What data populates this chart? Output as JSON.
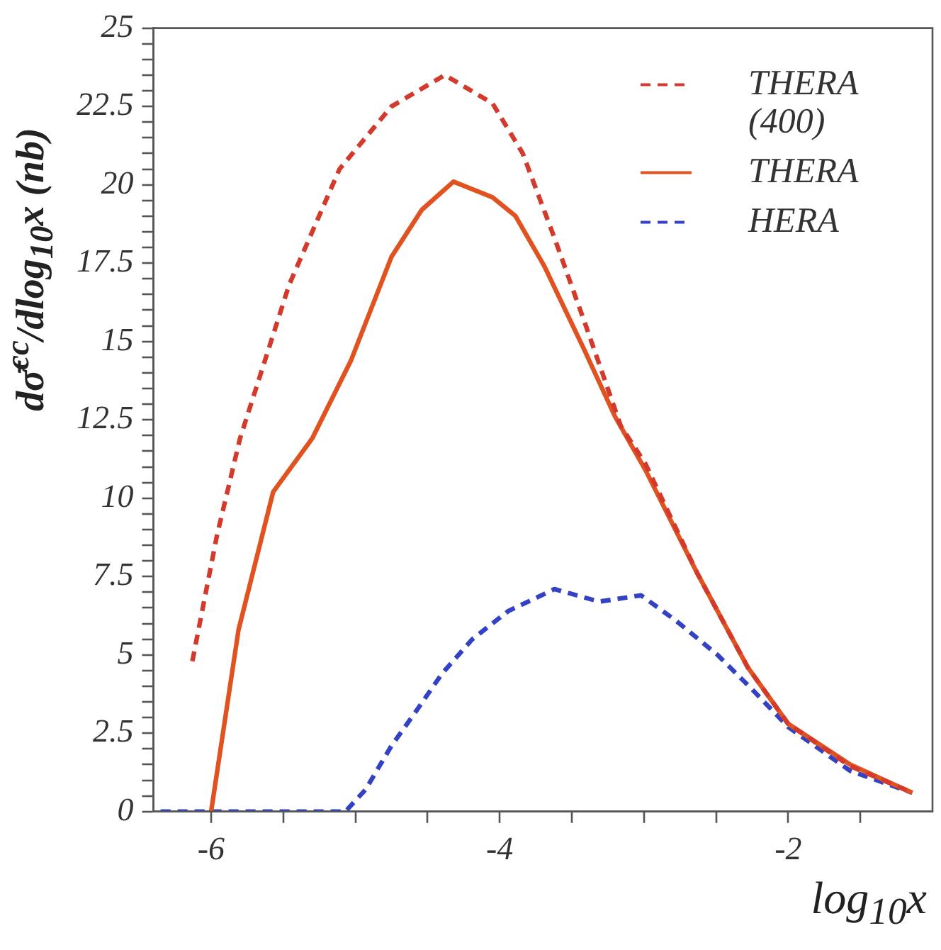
{
  "chart_data": {
    "type": "line",
    "xlabel": "log$_{10}$x",
    "ylabel": "dσ̄$^{cc}$/dlog$_{10}$x (nb)",
    "xlim": [
      -6.4,
      -1.0
    ],
    "ylim": [
      0,
      25
    ],
    "xticks": [
      -6,
      {
        "value": -5.5,
        "label": null
      },
      {
        "value": -5,
        "label": null
      },
      {
        "value": -4.5,
        "label": null
      },
      -4,
      {
        "value": -3.5,
        "label": null
      },
      {
        "value": -3,
        "label": null
      },
      {
        "value": -2.5,
        "label": null
      },
      -2,
      {
        "value": -1.5,
        "label": null
      }
    ],
    "yticks": [
      0,
      {
        "value": 0.5,
        "label": null
      },
      {
        "value": 1,
        "label": null
      },
      {
        "value": 1.5,
        "label": null
      },
      {
        "value": 2,
        "label": null
      },
      2.5,
      {
        "value": 3,
        "label": null
      },
      {
        "value": 3.5,
        "label": null
      },
      {
        "value": 4,
        "label": null
      },
      {
        "value": 4.5,
        "label": null
      },
      5,
      {
        "value": 5.5,
        "label": null
      },
      {
        "value": 6,
        "label": null
      },
      {
        "value": 6.5,
        "label": null
      },
      {
        "value": 7,
        "label": null
      },
      7.5,
      {
        "value": 8,
        "label": null
      },
      {
        "value": 8.5,
        "label": null
      },
      {
        "value": 9,
        "label": null
      },
      {
        "value": 9.5,
        "label": null
      },
      10,
      {
        "value": 10.5,
        "label": null
      },
      {
        "value": 11,
        "label": null
      },
      {
        "value": 11.5,
        "label": null
      },
      {
        "value": 12,
        "label": null
      },
      12.5,
      {
        "value": 13,
        "label": null
      },
      {
        "value": 13.5,
        "label": null
      },
      {
        "value": 14,
        "label": null
      },
      {
        "value": 14.5,
        "label": null
      },
      15,
      {
        "value": 15.5,
        "label": null
      },
      {
        "value": 16,
        "label": null
      },
      {
        "value": 16.5,
        "label": null
      },
      {
        "value": 17,
        "label": null
      },
      17.5,
      {
        "value": 18,
        "label": null
      },
      {
        "value": 18.5,
        "label": null
      },
      {
        "value": 19,
        "label": null
      },
      {
        "value": 19.5,
        "label": null
      },
      20,
      {
        "value": 20.5,
        "label": null
      },
      {
        "value": 21,
        "label": null
      },
      {
        "value": 21.5,
        "label": null
      },
      {
        "value": 22,
        "label": null
      },
      22.5,
      {
        "value": 23,
        "label": null
      },
      {
        "value": 23.5,
        "label": null
      },
      {
        "value": 24,
        "label": null
      },
      {
        "value": 24.5,
        "label": null
      },
      25
    ],
    "grid": false,
    "legend": "top right",
    "marker": "none",
    "series": [
      {
        "name": "THERA (400)",
        "color": "#d33a2c",
        "line_style": "dashed",
        "x": [
          -6.13,
          -5.96,
          -5.8,
          -5.46,
          -5.11,
          -4.75,
          -4.38,
          -4.05,
          -3.84,
          -3.62,
          -3.41,
          -3.16,
          -2.99,
          -2.63,
          -2.28,
          -2.0,
          -1.57,
          -1.14
        ],
        "values": [
          4.8,
          8.8,
          11.9,
          16.8,
          20.5,
          22.5,
          23.5,
          22.6,
          21.0,
          18.3,
          15.6,
          12.3,
          11.1,
          7.6,
          4.6,
          2.8,
          1.45,
          0.6
        ]
      },
      {
        "name": "THERA",
        "color": "#e0521f",
        "line_style": "solid",
        "x": [
          -6.0,
          -5.81,
          -5.57,
          -5.3,
          -5.03,
          -4.75,
          -4.54,
          -4.32,
          -4.05,
          -3.89,
          -3.69,
          -3.41,
          -3.2,
          -2.99,
          -2.63,
          -2.28,
          -2.0,
          -1.57,
          -1.14
        ],
        "values": [
          0,
          5.8,
          10.2,
          11.9,
          14.4,
          17.7,
          19.2,
          20.1,
          19.6,
          19.0,
          17.4,
          14.7,
          12.6,
          10.9,
          7.6,
          4.6,
          2.8,
          1.5,
          0.6
        ]
      },
      {
        "name": "HERA",
        "color": "#3342c4",
        "line_style": "dashed",
        "x": [
          -6.35,
          -5.07,
          -4.93,
          -4.75,
          -4.58,
          -4.4,
          -4.19,
          -3.94,
          -3.62,
          -3.31,
          -3.02,
          -2.78,
          -2.49,
          -2.25,
          -2.0,
          -1.57,
          -1.14
        ],
        "values": [
          0,
          0,
          0.7,
          2.1,
          3.2,
          4.4,
          5.5,
          6.4,
          7.1,
          6.7,
          6.9,
          6.1,
          5.0,
          3.9,
          2.7,
          1.3,
          0.6
        ]
      }
    ]
  }
}
